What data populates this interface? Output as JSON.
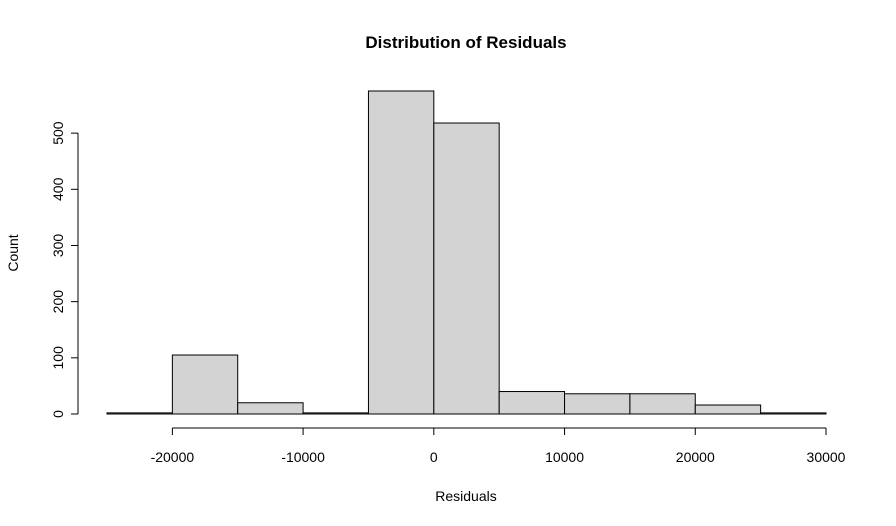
{
  "chart_data": {
    "type": "bar",
    "title": "Distribution of Residuals",
    "xlabel": "Residuals",
    "ylabel": "Count",
    "bin_edges": [
      -25000,
      -20000,
      -15000,
      -10000,
      -5000,
      0,
      5000,
      10000,
      15000,
      20000,
      25000,
      30000
    ],
    "counts": [
      2,
      105,
      20,
      2,
      575,
      518,
      40,
      36,
      36,
      16,
      2
    ],
    "xlim": [
      -25000,
      30000
    ],
    "ylim": [
      0,
      575
    ],
    "x_ticks": [
      -20000,
      -10000,
      0,
      10000,
      20000,
      30000
    ],
    "x_tick_labels": [
      "-20000",
      "-10000",
      "0",
      "10000",
      "20000",
      "30000"
    ],
    "y_ticks": [
      0,
      100,
      200,
      300,
      400,
      500
    ],
    "y_tick_labels": [
      "0",
      "100",
      "200",
      "300",
      "400",
      "500"
    ],
    "grid": false,
    "colors": {
      "bar_fill": "#d3d3d3",
      "bar_stroke": "#000000"
    }
  }
}
